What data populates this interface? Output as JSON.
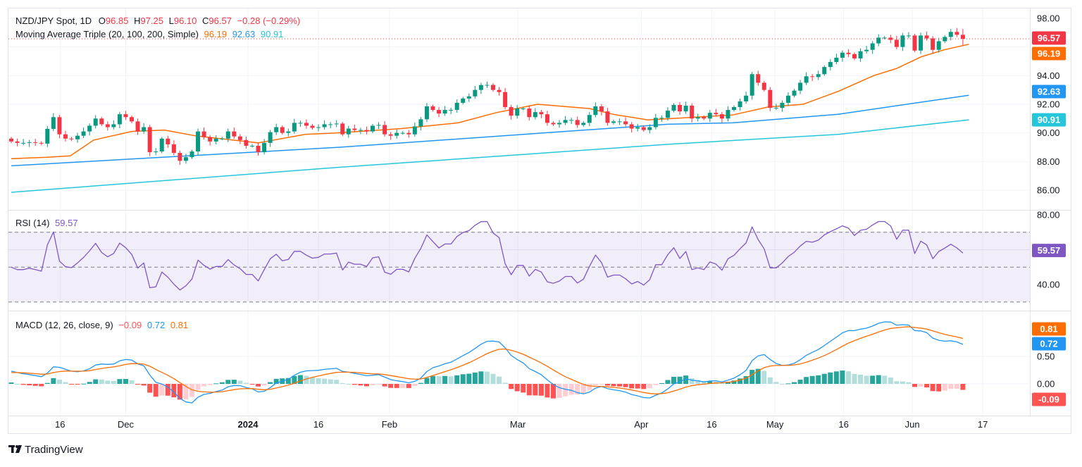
{
  "header": {
    "symbol": "NZD/JPY Spot, 1D",
    "open_label": "O",
    "open": "96.85",
    "high_label": "H",
    "high": "97.25",
    "low_label": "L",
    "low": "96.10",
    "close_label": "C",
    "close": "96.57",
    "change": "−0.28 (−0.29%)",
    "ma_label": "Moving Average Triple (20, 100, 200, Simple)",
    "ma20": "96.19",
    "ma100": "92.63",
    "ma200": "90.91"
  },
  "rsi_legend": {
    "label": "RSI (14)",
    "value": "59.57"
  },
  "macd_legend": {
    "label": "MACD (12, 26, close, 9)",
    "hist": "−0.09",
    "macd": "0.72",
    "signal": "0.81"
  },
  "price_tags": {
    "last": "96.57",
    "ma20": "96.19",
    "ma100": "92.63",
    "ma200": "90.91",
    "rsi": "59.57",
    "signal": "0.81",
    "macd": "0.72",
    "hist": "-0.09"
  },
  "brand": "TradingView",
  "colors": {
    "up": "#089981",
    "down": "#f23645",
    "ma20": "#ff6d00",
    "ma100": "#2196f3",
    "ma200": "#26c6da",
    "rsi": "#7e57c2",
    "macd": "#2196f3",
    "signal": "#ff6d00",
    "hist_up": "#26a69a",
    "hist_up_light": "#b2dfdb",
    "hist_down": "#ff5252",
    "hist_down_light": "#ffcdd2"
  },
  "chart_data": {
    "type": "candlestick",
    "title": "NZD/JPY Spot, 1D",
    "price_axis": {
      "ticks": [
        "98.00",
        "94.00",
        "92.00",
        "90.00",
        "88.00",
        "86.00"
      ],
      "ylim": [
        84.8,
        98.7
      ]
    },
    "rsi_axis": {
      "ticks": [
        "80.00",
        "40.00"
      ],
      "bands": [
        30,
        50,
        70
      ]
    },
    "macd_axis": {
      "ticks": [
        "0.50",
        "0.00"
      ]
    },
    "time_ticks": [
      {
        "label": "16",
        "bar": 8.1
      },
      {
        "label": "Dec",
        "bar": 19
      },
      {
        "label": "2024",
        "bar": 39.3,
        "bold": true
      },
      {
        "label": "16",
        "bar": 51
      },
      {
        "label": "Feb",
        "bar": 62.8
      },
      {
        "label": "Mar",
        "bar": 84.1
      },
      {
        "label": "Apr",
        "bar": 104.6
      },
      {
        "label": "16",
        "bar": 116.3
      },
      {
        "label": "May",
        "bar": 126.8
      },
      {
        "label": "16",
        "bar": 138.2
      },
      {
        "label": "Jun",
        "bar": 149.6
      },
      {
        "label": "17",
        "bar": 161.3
      }
    ],
    "first_open": 89.6,
    "closes": [
      89.4,
      89.3,
      89.3,
      89.35,
      89.3,
      89.25,
      90.28,
      91.1,
      89.9,
      89.6,
      89.55,
      89.8,
      90.1,
      90.5,
      91.0,
      90.6,
      90.4,
      90.6,
      91.3,
      91.1,
      90.8,
      90.1,
      90.4,
      88.65,
      88.7,
      89.6,
      89.2,
      88.6,
      88.05,
      88.3,
      88.7,
      90.1,
      89.7,
      89.4,
      89.6,
      89.6,
      90.1,
      89.75,
      89.5,
      89.1,
      89.1,
      88.65,
      89.3,
      90.05,
      90.4,
      90.0,
      90.1,
      90.7,
      90.7,
      90.5,
      90.35,
      90.4,
      90.6,
      90.6,
      90.65,
      89.9,
      90.3,
      90.2,
      90.2,
      90.1,
      90.5,
      90.55,
      89.9,
      89.8,
      90.0,
      90.0,
      89.9,
      90.45,
      90.95,
      91.85,
      91.6,
      91.35,
      91.6,
      91.6,
      92.1,
      92.4,
      92.55,
      93.0,
      93.34,
      93.35,
      93.0,
      92.85,
      91.8,
      91.2,
      91.7,
      91.7,
      91.1,
      91.45,
      91.3,
      90.7,
      90.6,
      90.7,
      90.9,
      90.9,
      90.55,
      90.7,
      91.25,
      91.85,
      91.5,
      90.7,
      90.8,
      90.8,
      90.6,
      90.3,
      90.4,
      90.2,
      90.4,
      91.05,
      91.05,
      91.55,
      91.95,
      91.5,
      91.9,
      91.0,
      91.1,
      91.0,
      91.4,
      91.3,
      91.0,
      91.6,
      91.8,
      92.2,
      92.6,
      94.1,
      93.5,
      93.0,
      91.75,
      91.75,
      92.1,
      92.6,
      92.95,
      93.5,
      93.95,
      93.9,
      94.1,
      94.6,
      94.95,
      95.25,
      95.6,
      95.5,
      95.2,
      95.7,
      95.8,
      96.25,
      96.65,
      96.65,
      96.5,
      96.0,
      96.8,
      96.8,
      95.75,
      96.8,
      96.6,
      95.8,
      96.4,
      96.7,
      97.05,
      96.85,
      96.57
    ],
    "last_ohlc": {
      "open": 96.85,
      "high": 97.25,
      "low": 96.1,
      "close": 96.57
    },
    "ma20": [
      [
        0,
        88.2
      ],
      [
        6,
        88.3
      ],
      [
        9.8,
        88.4
      ],
      [
        13.7,
        89.5
      ],
      [
        20,
        90.1
      ],
      [
        25.4,
        90.2
      ],
      [
        30.5,
        89.8
      ],
      [
        41,
        89.3
      ],
      [
        48.8,
        89.9
      ],
      [
        54.3,
        90.0
      ],
      [
        64.8,
        90.3
      ],
      [
        74.2,
        90.7
      ],
      [
        80.4,
        91.4
      ],
      [
        87.4,
        92.0
      ],
      [
        96,
        91.7
      ],
      [
        99.9,
        91.3
      ],
      [
        105.7,
        90.9
      ],
      [
        119.8,
        91.25
      ],
      [
        125.6,
        91.8
      ],
      [
        131.5,
        92.0
      ],
      [
        137.3,
        92.9
      ],
      [
        143.2,
        94.0
      ],
      [
        147,
        94.5
      ],
      [
        151,
        95.3
      ],
      [
        154.9,
        95.8
      ],
      [
        159,
        96.19
      ]
    ],
    "ma100": [
      [
        0,
        87.7
      ],
      [
        54.6,
        89.0
      ],
      [
        109,
        90.6
      ],
      [
        119.8,
        90.7
      ],
      [
        137.3,
        91.3
      ],
      [
        159,
        92.63
      ]
    ],
    "ma200": [
      [
        0,
        85.85
      ],
      [
        54.6,
        87.6
      ],
      [
        109,
        89.2
      ],
      [
        137.3,
        89.9
      ],
      [
        159,
        90.91
      ]
    ],
    "rsi_period": 14,
    "macd_params": [
      12,
      26,
      9
    ]
  }
}
